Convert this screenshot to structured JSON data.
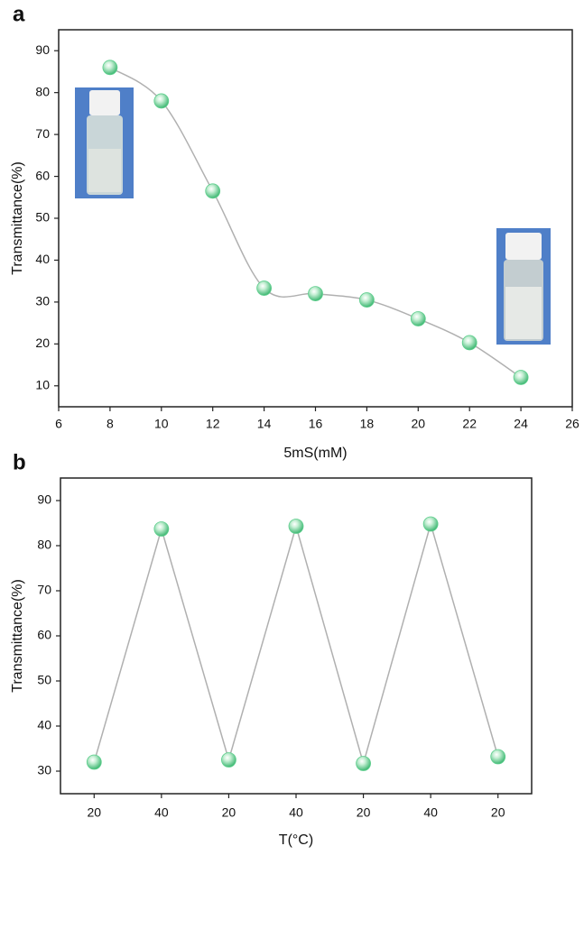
{
  "chart_data": [
    {
      "type": "line",
      "panel_label": "a",
      "x_label": "5mS(mM)",
      "y_label": "Transmittance(%)",
      "x": [
        8,
        10,
        12,
        14,
        16,
        18,
        20,
        22,
        24
      ],
      "values": [
        86,
        78,
        56.5,
        33.3,
        32,
        30.5,
        26,
        20.3,
        12
      ],
      "xlim": [
        6,
        26
      ],
      "xticks": [
        6,
        8,
        10,
        12,
        14,
        16,
        18,
        20,
        22,
        24,
        26
      ],
      "ylim": [
        5,
        95
      ],
      "yticks": [
        10,
        20,
        30,
        40,
        50,
        60,
        70,
        80,
        90
      ],
      "smooth": true,
      "color": "#5fcf8e",
      "line_color": "#b0b0b0"
    },
    {
      "type": "line",
      "panel_label": "b",
      "x_label": "T(°C)",
      "y_label": "Transmittance(%)",
      "categories": [
        "20",
        "40",
        "20",
        "40",
        "20",
        "40",
        "20"
      ],
      "values": [
        32,
        83.7,
        32.5,
        84.3,
        31.7,
        84.8,
        33.2
      ],
      "ylim": [
        25,
        95
      ],
      "yticks": [
        30,
        40,
        50,
        60,
        70,
        80,
        90
      ],
      "smooth": false,
      "color": "#5fcf8e",
      "line_color": "#b0b0b0"
    }
  ]
}
